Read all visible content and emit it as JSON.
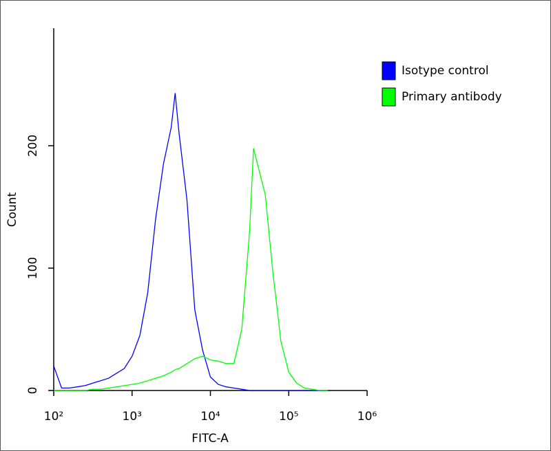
{
  "chart_data": {
    "type": "line",
    "xlabel": "FITC-A",
    "ylabel": "Count",
    "x": [
      100,
      126,
      158,
      200,
      251,
      316,
      398,
      501,
      631,
      794,
      1000,
      1259,
      1585,
      1995,
      2512,
      3162,
      3548,
      3981,
      5012,
      6310,
      7943,
      10000,
      12589,
      15849,
      19953,
      25119,
      31623,
      35481,
      39811,
      50119,
      63096,
      79433,
      100000,
      125893,
      158489,
      199526,
      251189,
      316228
    ],
    "series": [
      {
        "name": "Isotype control",
        "color": "#0000ff",
        "values": [
          20,
          2,
          2,
          3,
          4,
          6,
          8,
          10,
          14,
          18,
          28,
          45,
          80,
          140,
          185,
          215,
          243,
          210,
          156,
          66,
          33,
          11,
          5,
          3,
          2,
          1,
          0,
          0,
          0,
          0,
          0,
          0,
          0,
          0,
          0,
          0,
          0,
          0
        ]
      },
      {
        "name": "Primary antibody",
        "color": "#00ff00",
        "values": [
          0,
          0,
          0,
          0,
          0,
          1,
          1,
          2,
          3,
          4,
          5,
          6,
          8,
          10,
          12,
          15,
          17,
          18,
          22,
          26,
          28,
          25,
          24,
          22,
          22,
          50,
          130,
          198,
          185,
          160,
          95,
          40,
          15,
          6,
          2,
          1,
          0,
          0
        ]
      }
    ],
    "xlim": [
      100,
      1000000
    ],
    "xscale": "log",
    "xticks": [
      {
        "value": 100,
        "label": "10²"
      },
      {
        "value": 1000,
        "label": "10³"
      },
      {
        "value": 10000,
        "label": "10⁴"
      },
      {
        "value": 100000,
        "label": "10⁵"
      },
      {
        "value": 1000000,
        "label": "10⁶"
      }
    ],
    "ylim": [
      0,
      296
    ],
    "yticks": [
      0,
      100,
      200
    ],
    "legend": "upper right"
  }
}
